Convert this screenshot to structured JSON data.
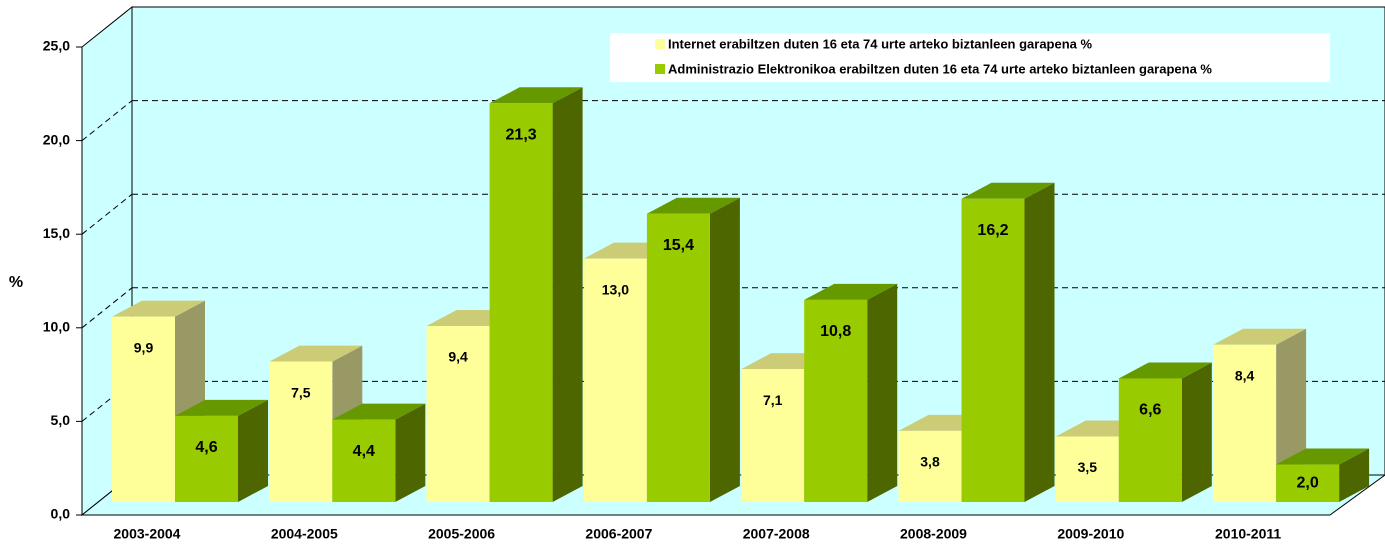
{
  "chart_data": {
    "type": "bar3d",
    "y_label": "%",
    "categories": [
      "2003-2004",
      "2004-2005",
      "2005-2006",
      "2006-2007",
      "2007-2008",
      "2008-2009",
      "2009-2010",
      "2010-2011"
    ],
    "series": [
      {
        "name": "Internet erabiltzen duten 16 eta 74 urte arteko biztanleen garapena %",
        "color": "#ffff99",
        "values": [
          9.9,
          7.5,
          9.4,
          13.0,
          7.1,
          3.8,
          3.5,
          8.4
        ],
        "value_labels": [
          "9,9",
          "7,5",
          "9,4",
          "13,0",
          "7,1",
          "3,8",
          "3,5",
          "8,4"
        ]
      },
      {
        "name": "Administrazio Elektronikoa erabiltzen duten 16 eta 74 urte arteko biztanleen garapena %",
        "color": "#99cc00",
        "values": [
          4.6,
          4.4,
          21.3,
          15.4,
          10.8,
          16.2,
          6.6,
          2.0
        ],
        "value_labels": [
          "4,6",
          "4,4",
          "21,3",
          "15,4",
          "10,8",
          "16,2",
          "6,6",
          "2,0"
        ]
      }
    ],
    "ylim": [
      0,
      25
    ],
    "yticks": [
      {
        "value": 0,
        "label": "0,0"
      },
      {
        "value": 5,
        "label": "5,0"
      },
      {
        "value": 10,
        "label": "10,0"
      },
      {
        "value": 15,
        "label": "15,0"
      },
      {
        "value": 20,
        "label": "20,0"
      },
      {
        "value": 25,
        "label": "25,0"
      }
    ],
    "grid": true
  }
}
